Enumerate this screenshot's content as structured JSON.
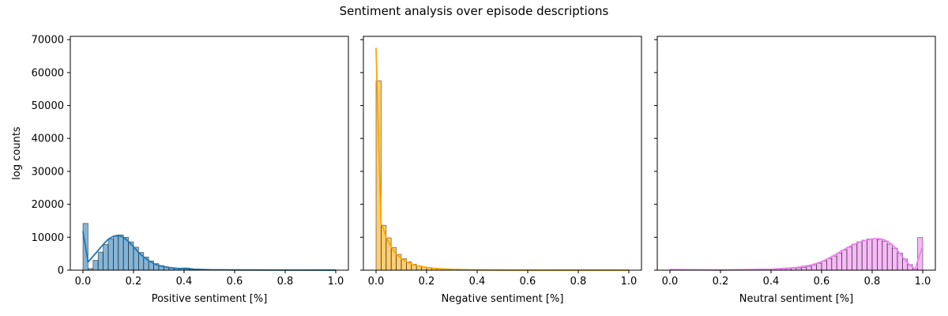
{
  "title": "Sentiment analysis over episode descriptions",
  "ylabel": "log counts",
  "chart_data": [
    {
      "type": "histogram",
      "xlabel": "Positive sentiment [%]",
      "ylabel": "log counts",
      "xlim": [
        -0.05,
        1.05
      ],
      "ylim": [
        0,
        71000
      ],
      "xticks": [
        "0.0",
        "0.2",
        "0.4",
        "0.6",
        "0.8",
        "1.0"
      ],
      "yticks": [
        "0",
        "10000",
        "20000",
        "30000",
        "40000",
        "50000",
        "60000",
        "70000"
      ],
      "color": "#1f77b4",
      "bin_width": 0.02,
      "bins_x": [
        0.0,
        0.02,
        0.04,
        0.06,
        0.08,
        0.1,
        0.12,
        0.14,
        0.16,
        0.18,
        0.2,
        0.22,
        0.24,
        0.26,
        0.28,
        0.3,
        0.32,
        0.34,
        0.36,
        0.38,
        0.4,
        0.42,
        0.44,
        0.46,
        0.48,
        0.5,
        0.52,
        0.54,
        0.56,
        0.58,
        0.6,
        0.62,
        0.64,
        0.66,
        0.68,
        0.7,
        0.72,
        0.74,
        0.76,
        0.78,
        0.8,
        0.82,
        0.84,
        0.86,
        0.88,
        0.9,
        0.92,
        0.94,
        0.96,
        0.98
      ],
      "counts": [
        14200,
        500,
        3000,
        5500,
        7800,
        9500,
        10300,
        10700,
        10000,
        8600,
        7000,
        5400,
        4000,
        2800,
        2000,
        1400,
        1000,
        700,
        500,
        400,
        350,
        200,
        150,
        120,
        100,
        80,
        70,
        60,
        50,
        45,
        40,
        35,
        30,
        25,
        20,
        15,
        12,
        10,
        10,
        10,
        10,
        10,
        10,
        10,
        10,
        10,
        10,
        10,
        10,
        10
      ],
      "kde": [
        [
          0.0,
          11800
        ],
        [
          0.02,
          2500
        ],
        [
          0.04,
          4200
        ],
        [
          0.06,
          6000
        ],
        [
          0.08,
          7800
        ],
        [
          0.1,
          9400
        ],
        [
          0.12,
          10300
        ],
        [
          0.14,
          10600
        ],
        [
          0.16,
          10000
        ],
        [
          0.18,
          8700
        ],
        [
          0.2,
          7100
        ],
        [
          0.22,
          5400
        ],
        [
          0.24,
          4000
        ],
        [
          0.26,
          2900
        ],
        [
          0.28,
          2000
        ],
        [
          0.3,
          1400
        ],
        [
          0.34,
          800
        ],
        [
          0.38,
          500
        ],
        [
          0.41,
          600
        ],
        [
          0.44,
          300
        ],
        [
          0.5,
          150
        ],
        [
          0.6,
          80
        ],
        [
          0.8,
          30
        ],
        [
          1.0,
          10
        ]
      ]
    },
    {
      "type": "histogram",
      "xlabel": "Negative sentiment [%]",
      "xlim": [
        -0.05,
        1.05
      ],
      "ylim": [
        0,
        71000
      ],
      "xticks": [
        "0.0",
        "0.2",
        "0.4",
        "0.6",
        "0.8",
        "1.0"
      ],
      "color": "#ffa500",
      "bin_width": 0.02,
      "bins_x": [
        0.0,
        0.02,
        0.04,
        0.06,
        0.08,
        0.1,
        0.12,
        0.14,
        0.16,
        0.18,
        0.2,
        0.22,
        0.24,
        0.26,
        0.28,
        0.3,
        0.32,
        0.34,
        0.36,
        0.38,
        0.4,
        0.42,
        0.44,
        0.46,
        0.48,
        0.5,
        0.52,
        0.54,
        0.56,
        0.58,
        0.6,
        0.62,
        0.64,
        0.66,
        0.68,
        0.7,
        0.72,
        0.74,
        0.76,
        0.78,
        0.8,
        0.82,
        0.84,
        0.86,
        0.88,
        0.9,
        0.92,
        0.94,
        0.96,
        0.98
      ],
      "counts": [
        57500,
        13600,
        9800,
        6900,
        4800,
        3500,
        2500,
        1800,
        1300,
        1000,
        800,
        600,
        450,
        350,
        250,
        200,
        150,
        120,
        100,
        80,
        60,
        50,
        40,
        35,
        30,
        25,
        20,
        15,
        12,
        10,
        10,
        8,
        8,
        6,
        6,
        5,
        5,
        4,
        4,
        4,
        3,
        3,
        3,
        3,
        3,
        3,
        3,
        3,
        3,
        3
      ],
      "kde": [
        [
          0.0,
          67500
        ],
        [
          0.01,
          40000
        ],
        [
          0.02,
          14000
        ],
        [
          0.03,
          12500
        ],
        [
          0.04,
          10000
        ],
        [
          0.06,
          7000
        ],
        [
          0.08,
          4900
        ],
        [
          0.1,
          3600
        ],
        [
          0.12,
          2600
        ],
        [
          0.14,
          1900
        ],
        [
          0.16,
          1400
        ],
        [
          0.2,
          850
        ],
        [
          0.24,
          480
        ],
        [
          0.3,
          220
        ],
        [
          0.4,
          80
        ],
        [
          0.5,
          30
        ],
        [
          0.7,
          8
        ],
        [
          1.0,
          3
        ]
      ]
    },
    {
      "type": "histogram",
      "xlabel": "Neutral sentiment [%]",
      "xlim": [
        -0.05,
        1.05
      ],
      "ylim": [
        0,
        71000
      ],
      "xticks": [
        "0.0",
        "0.2",
        "0.4",
        "0.6",
        "0.8",
        "1.0"
      ],
      "color": "#ee82ee",
      "bin_width": 0.02,
      "bins_x": [
        0.0,
        0.02,
        0.04,
        0.06,
        0.08,
        0.1,
        0.12,
        0.14,
        0.16,
        0.18,
        0.2,
        0.22,
        0.24,
        0.26,
        0.28,
        0.3,
        0.32,
        0.34,
        0.36,
        0.38,
        0.4,
        0.42,
        0.44,
        0.46,
        0.48,
        0.5,
        0.52,
        0.54,
        0.56,
        0.58,
        0.6,
        0.62,
        0.64,
        0.66,
        0.68,
        0.7,
        0.72,
        0.74,
        0.76,
        0.78,
        0.8,
        0.82,
        0.84,
        0.86,
        0.88,
        0.9,
        0.92,
        0.94,
        0.96,
        0.98
      ],
      "counts": [
        80,
        30,
        30,
        30,
        30,
        30,
        30,
        30,
        30,
        40,
        40,
        50,
        60,
        70,
        80,
        100,
        120,
        150,
        200,
        250,
        300,
        350,
        400,
        500,
        600,
        700,
        900,
        1200,
        1600,
        2100,
        2800,
        3500,
        4300,
        5200,
        6100,
        7000,
        7900,
        8600,
        9100,
        9500,
        9600,
        9300,
        8800,
        7900,
        6700,
        5200,
        3400,
        1700,
        500,
        9900
      ],
      "kde": [
        [
          0.0,
          200
        ],
        [
          0.2,
          50
        ],
        [
          0.4,
          300
        ],
        [
          0.5,
          800
        ],
        [
          0.56,
          1600
        ],
        [
          0.6,
          2600
        ],
        [
          0.64,
          4100
        ],
        [
          0.68,
          5900
        ],
        [
          0.72,
          7600
        ],
        [
          0.76,
          8800
        ],
        [
          0.8,
          9500
        ],
        [
          0.82,
          9600
        ],
        [
          0.84,
          9400
        ],
        [
          0.86,
          8800
        ],
        [
          0.88,
          7700
        ],
        [
          0.9,
          6000
        ],
        [
          0.92,
          4000
        ],
        [
          0.94,
          2200
        ],
        [
          0.96,
          900
        ],
        [
          0.97,
          300
        ],
        [
          0.985,
          4000
        ],
        [
          1.0,
          7300
        ]
      ]
    }
  ]
}
